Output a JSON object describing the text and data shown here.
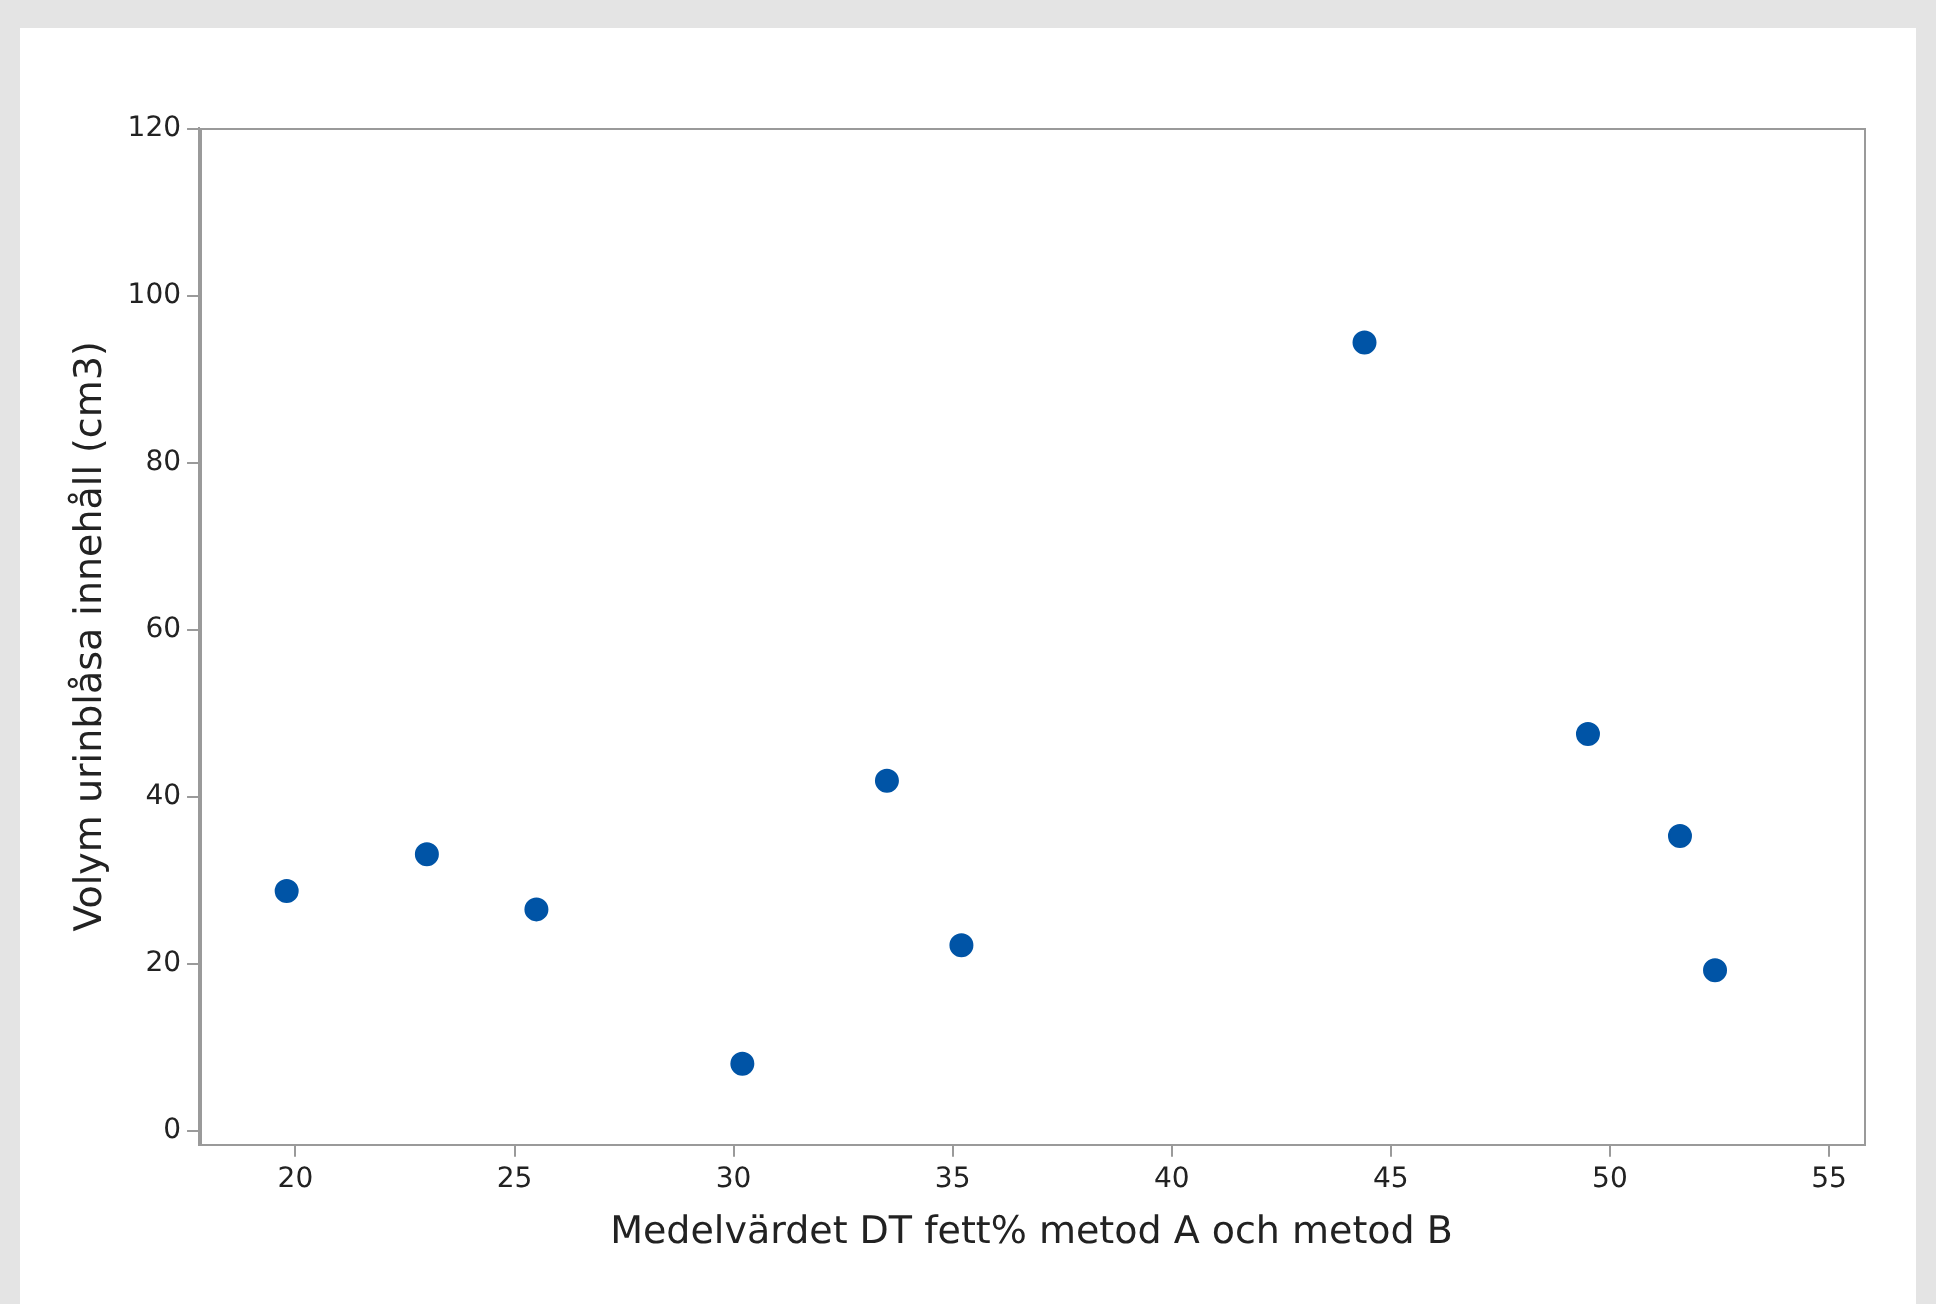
{
  "chart_data": {
    "type": "scatter",
    "xlabel": "Medelvärdet DT fett% metod A och metod B",
    "ylabel": "Volym urinblåsa innehåll (cm3)",
    "x": [
      19.8,
      23.0,
      25.5,
      30.2,
      33.5,
      35.2,
      44.4,
      49.5,
      51.6,
      52.4
    ],
    "series": [
      {
        "color": "#0054a6",
        "values": [
          28.7,
          33.1,
          26.5,
          8.0,
          41.9,
          22.2,
          94.4,
          47.5,
          35.3,
          19.2
        ]
      }
    ],
    "xlim": [
      17.8,
      55.8
    ],
    "ylim": [
      -1.7,
      120.1
    ],
    "xticks": [
      20,
      25,
      30,
      35,
      40,
      45,
      50,
      55
    ],
    "yticks": [
      0,
      20,
      40,
      60,
      80,
      100,
      120
    ],
    "grid": false,
    "legend": false,
    "marker": "circle"
  }
}
